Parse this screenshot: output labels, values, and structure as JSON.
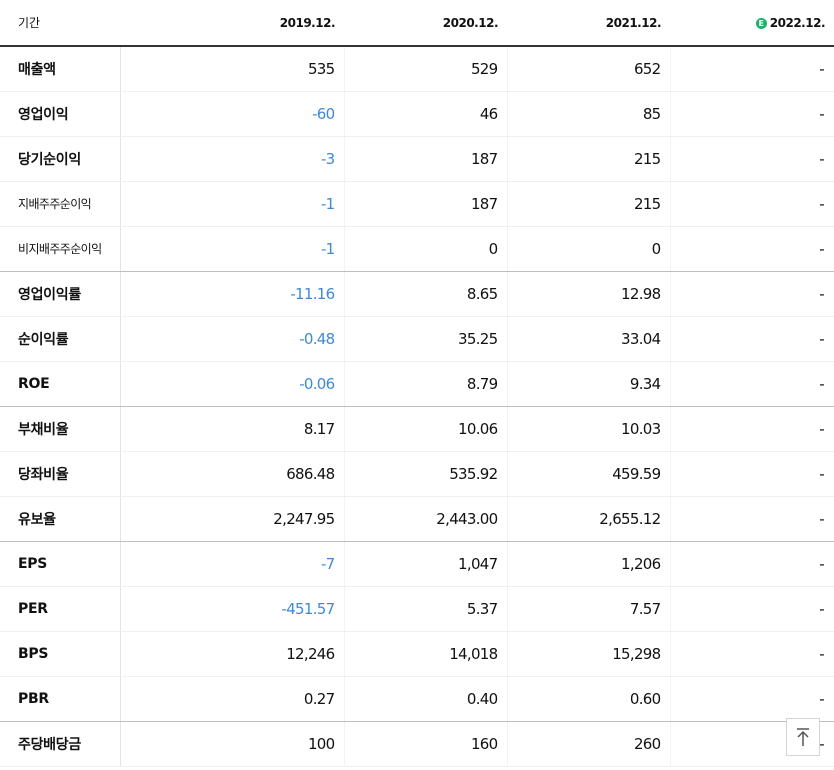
{
  "header": {
    "period_label": "기간",
    "years": [
      "2019.12.",
      "2020.12.",
      "2021.12.",
      "2022.12."
    ],
    "estimate_icon": "E"
  },
  "rows": [
    {
      "label": "매출액",
      "values": [
        "535",
        "529",
        "652",
        "-"
      ]
    },
    {
      "label": "영업이익",
      "values": [
        "-60",
        "46",
        "85",
        "-"
      ]
    },
    {
      "label": "당기순이익",
      "values": [
        "-3",
        "187",
        "215",
        "-"
      ]
    },
    {
      "label": "지배주주순이익",
      "values": [
        "-1",
        "187",
        "215",
        "-"
      ]
    },
    {
      "label": "비지배주주순이익",
      "values": [
        "-1",
        "0",
        "0",
        "-"
      ]
    },
    {
      "label": "영업이익률",
      "values": [
        "-11.16",
        "8.65",
        "12.98",
        "-"
      ]
    },
    {
      "label": "순이익률",
      "values": [
        "-0.48",
        "35.25",
        "33.04",
        "-"
      ]
    },
    {
      "label": "ROE",
      "values": [
        "-0.06",
        "8.79",
        "9.34",
        "-"
      ]
    },
    {
      "label": "부채비율",
      "values": [
        "8.17",
        "10.06",
        "10.03",
        "-"
      ]
    },
    {
      "label": "당좌비율",
      "values": [
        "686.48",
        "535.92",
        "459.59",
        "-"
      ]
    },
    {
      "label": "유보율",
      "values": [
        "2,247.95",
        "2,443.00",
        "2,655.12",
        "-"
      ]
    },
    {
      "label": "EPS",
      "values": [
        "-7",
        "1,047",
        "1,206",
        "-"
      ]
    },
    {
      "label": "PER",
      "values": [
        "-451.57",
        "5.37",
        "7.57",
        "-"
      ]
    },
    {
      "label": "BPS",
      "values": [
        "12,246",
        "14,018",
        "15,298",
        "-"
      ]
    },
    {
      "label": "PBR",
      "values": [
        "0.27",
        "0.40",
        "0.60",
        "-"
      ]
    },
    {
      "label": "주당배당금",
      "values": [
        "100",
        "160",
        "260",
        "-"
      ]
    }
  ],
  "colors": {
    "negative": "#3e8ad6",
    "estimate_badge": "#19b26b"
  },
  "scroll_top_icon": "arrow-up-icon"
}
